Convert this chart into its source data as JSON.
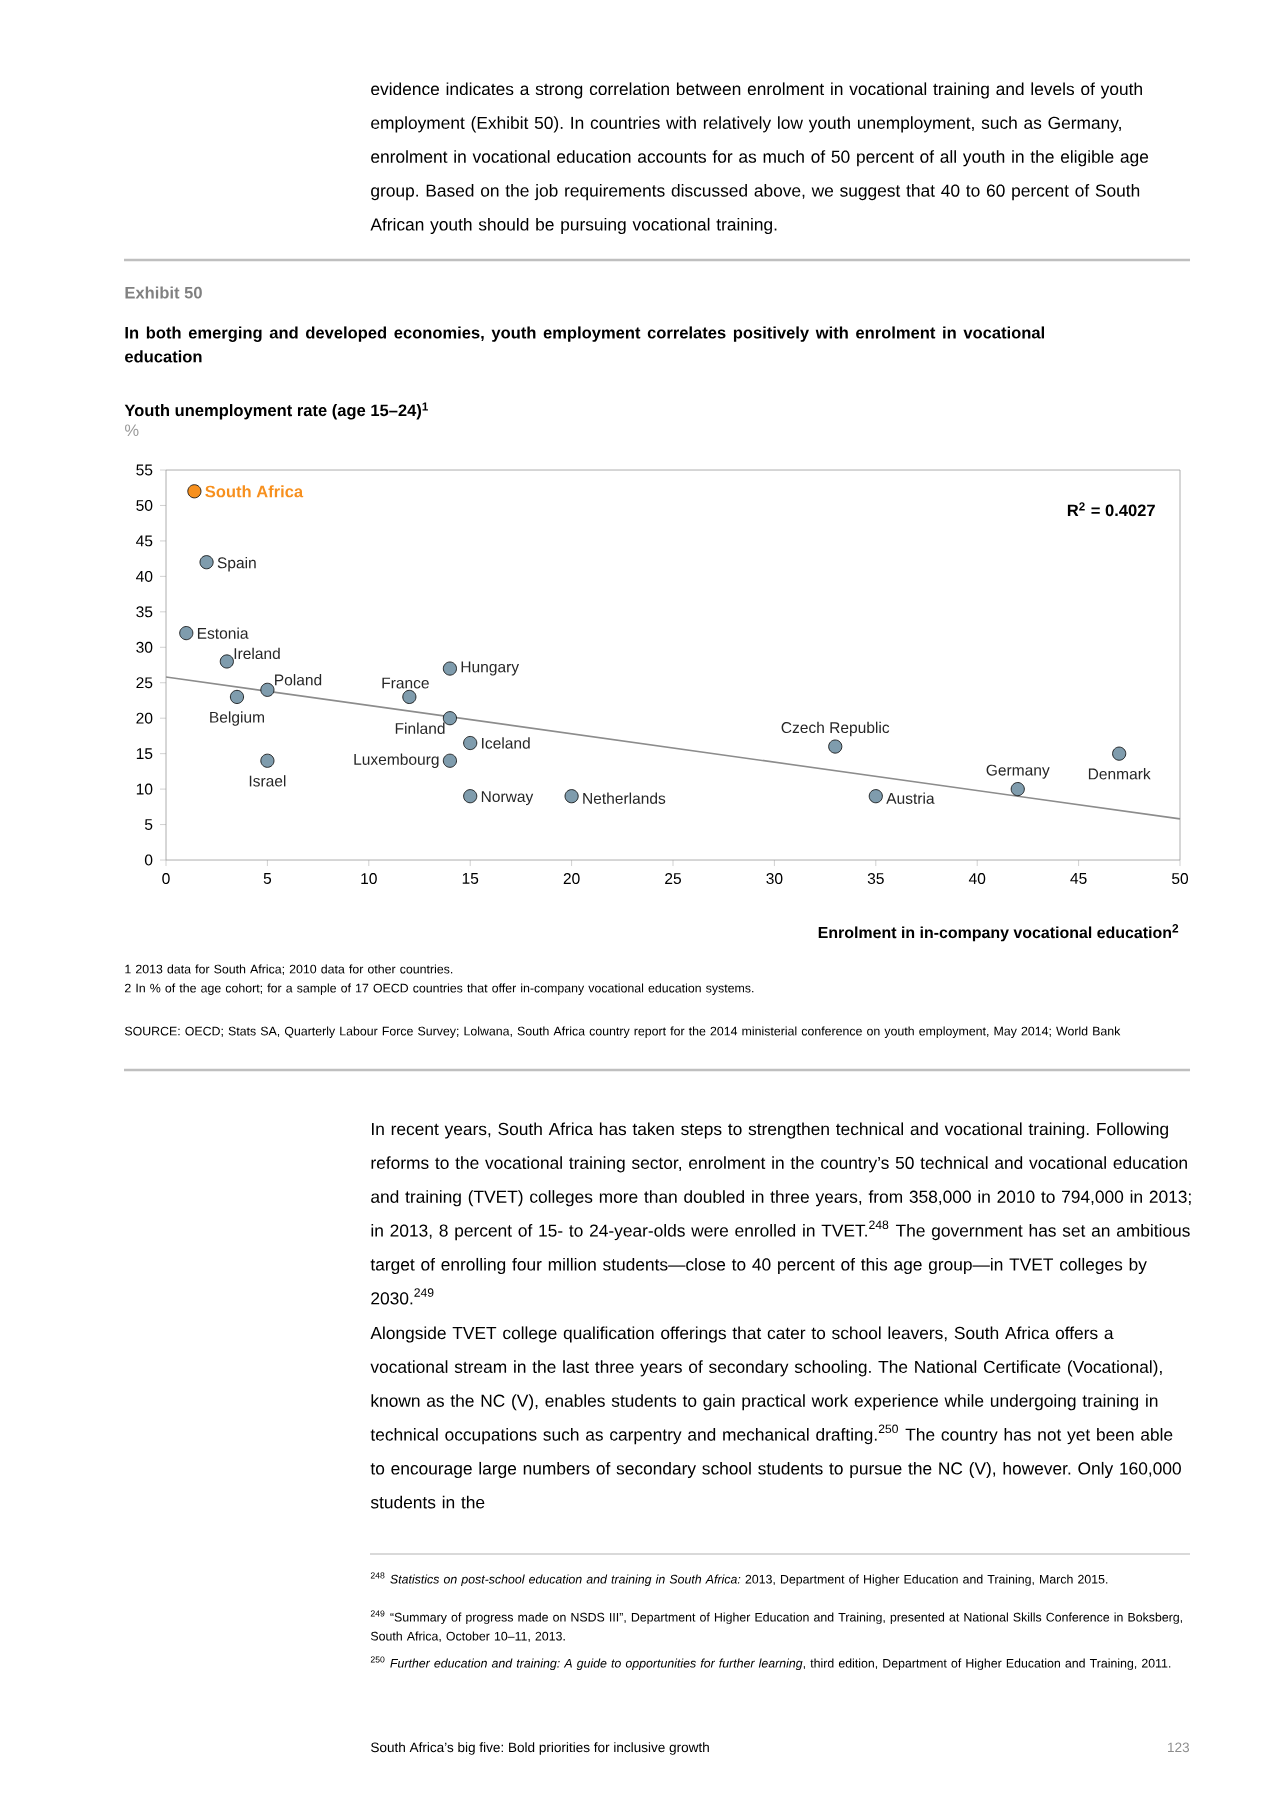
{
  "chart_data": {
    "type": "scatter",
    "title": "In both emerging and developed economies, youth employment correlates positively with enrolment in vocational education",
    "ylabel": "Youth unemployment rate (age 15–24)$^{1}$",
    "xlabel": "Enrolment in in-company vocational education$^{2}$",
    "xlim": [
      0,
      50
    ],
    "xticks": [
      0,
      5,
      10,
      15,
      20,
      25,
      30,
      35,
      40,
      45,
      50
    ],
    "ylim": [
      0,
      55
    ],
    "yticks": [
      0,
      5,
      10,
      15,
      20,
      25,
      30,
      35,
      40,
      45,
      50,
      55
    ],
    "marker": "circle",
    "series": [
      {
        "name": "South Africa",
        "color": "#f7901e",
        "x": [
          1.4
        ],
        "values": [
          52
        ]
      },
      {
        "name": "Spain",
        "color": "#7f9cad",
        "x": [
          2
        ],
        "values": [
          42
        ]
      },
      {
        "name": "Estonia",
        "color": "#7f9cad",
        "x": [
          1
        ],
        "values": [
          32
        ]
      },
      {
        "name": "Ireland",
        "color": "#7f9cad",
        "x": [
          3
        ],
        "values": [
          28
        ]
      },
      {
        "name": "Poland",
        "color": "#7f9cad",
        "x": [
          5
        ],
        "values": [
          24
        ]
      },
      {
        "name": "Belgium",
        "color": "#7f9cad",
        "x": [
          3.5
        ],
        "values": [
          23
        ]
      },
      {
        "name": "Israel",
        "color": "#7f9cad",
        "x": [
          5
        ],
        "values": [
          14
        ]
      },
      {
        "name": "France",
        "color": "#7f9cad",
        "x": [
          12
        ],
        "values": [
          23
        ]
      },
      {
        "name": "Hungary",
        "color": "#7f9cad",
        "x": [
          14
        ],
        "values": [
          27
        ]
      },
      {
        "name": "Finland",
        "color": "#7f9cad",
        "x": [
          14
        ],
        "values": [
          20
        ]
      },
      {
        "name": "Iceland",
        "color": "#7f9cad",
        "x": [
          15
        ],
        "values": [
          16.5
        ]
      },
      {
        "name": "Luxembourg",
        "color": "#7f9cad",
        "x": [
          14
        ],
        "values": [
          14
        ]
      },
      {
        "name": "Norway",
        "color": "#7f9cad",
        "x": [
          15
        ],
        "values": [
          9
        ]
      },
      {
        "name": "Netherlands",
        "color": "#7f9cad",
        "x": [
          20
        ],
        "values": [
          9
        ]
      },
      {
        "name": "Czech Republic",
        "color": "#7f9cad",
        "x": [
          33
        ],
        "values": [
          16
        ]
      },
      {
        "name": "Austria",
        "color": "#7f9cad",
        "x": [
          35
        ],
        "values": [
          9
        ]
      },
      {
        "name": "Germany",
        "color": "#7f9cad",
        "x": [
          42
        ],
        "values": [
          10
        ]
      },
      {
        "name": "Denmark",
        "color": "#7f9cad",
        "x": [
          47
        ],
        "values": [
          15
        ]
      },
      {
        "type": "line",
        "marker": "none",
        "color": "#8c8c8c",
        "x": [
          0,
          50
        ],
        "values": [
          25.8,
          5.8
        ]
      }
    ],
    "annotations": [
      "Exhibit 50",
      "%",
      "R$^{2}$ = 0.4027",
      "1  2013 data for South Africa; 2010 data for other countries.",
      "2  In % of the age cohort; for a sample of 17 OECD countries that offer in-company vocational education systems.",
      "SOURCE:  OECD; Stats SA, Quarterly Labour Force Survey; Lolwana, South Africa country report for the 2014 ministerial conference on youth employment, May 2014; World Bank",
      "evidence indicates a strong correlation between enrolment in vocational training and levels of youth employment (Exhibit 50). In countries with relatively low youth unemployment, such as Germany, enrolment in vocational education accounts for as much of 50 percent of all youth in the eligible age group. Based on the job requirements discussed above, we suggest that 40 to 60 percent of South African youth should be pursuing vocational training.",
      "In recent years, South Africa has taken steps to strengthen technical and vocational training. Following reforms to the vocational training sector, enrolment in the country’s 50 technical and vocational education and training (TVET) colleges more than doubled in three years, from 358,000 in 2010 to 794,000 in 2013; in 2013, 8 percent of 15- to 24-year-olds were enrolled in TVET.$^{248}$ The government has set an ambitious target of enrolling four million students—close to 40 percent of this age group—in TVET colleges by 2030.$^{249}$",
      "Alongside TVET college qualification offerings that cater to school leavers, South Africa offers a vocational stream in the last three years of secondary schooling. The National Certificate (Vocational), known as the NC (V), enables students to gain practical work experience while undergoing training in technical occupations such as carpentry and mechanical drafting.$^{250}$ The country has not yet been able to encourage large numbers of secondary school students to pursue the NC (V), however. Only 160,000 students in the",
      "$^{248}$ *Statistics on post-school education and training in South Africa:* 2013, Department of Higher Education and Training, March 2015.",
      "$^{249}$ “Summary of progress made on NSDS III”, Department of Higher Education and Training, presented at National Skills Conference in Boksberg, South Africa, October 10–11, 2013.",
      "$^{250}$ *Further education and training: A guide to opportunities for further learning*, third edition, Department of Higher Education and Training, 2011.",
      "South Africa’s big five: Bold priorities for inclusive growth",
      "123"
    ]
  }
}
